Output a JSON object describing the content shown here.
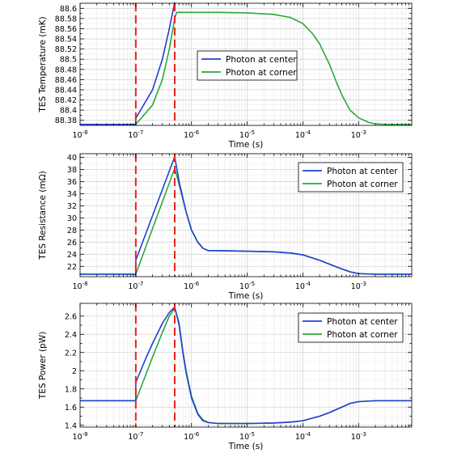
{
  "chart_data": [
    {
      "type": "line",
      "xscale": "log",
      "xlabel": "Time (s)",
      "ylabel": "TES Temperature (mK)",
      "xlim": [
        1e-08,
        0.009
      ],
      "ylim": [
        88.37,
        88.61
      ],
      "x_ticks": [
        1e-08,
        1e-07,
        1e-06,
        1e-05,
        0.0001,
        0.001
      ],
      "x_tick_labels": [
        {
          "base": "10",
          "exp": "-8"
        },
        {
          "base": "10",
          "exp": "-7"
        },
        {
          "base": "10",
          "exp": "-6"
        },
        {
          "base": "10",
          "exp": "-5"
        },
        {
          "base": "10",
          "exp": "-4"
        },
        {
          "base": "10",
          "exp": "-3"
        }
      ],
      "y_ticks": [
        88.38,
        88.4,
        88.42,
        88.44,
        88.46,
        88.48,
        88.5,
        88.52,
        88.54,
        88.56,
        88.58,
        88.6
      ],
      "y_tick_labels": [
        "88.38",
        "88.4",
        "88.42",
        "88.44",
        "88.46",
        "88.48",
        "88.5",
        "88.52",
        "88.54",
        "88.56",
        "88.58",
        "88.6"
      ],
      "grid": true,
      "legend_position": "center-right",
      "markers": [
        1e-07,
        5e-07
      ],
      "marker_color": "#e8221b",
      "series": [
        {
          "name": "Photon at center",
          "color": "#1f3fd6",
          "x": [
            1e-08,
            1e-07,
            1e-07,
            2e-07,
            3e-07,
            4e-07,
            5e-07
          ],
          "y": [
            88.372,
            88.372,
            88.384,
            88.44,
            88.5,
            88.56,
            88.612
          ]
        },
        {
          "name": "Photon at corner",
          "color": "#2aa83a",
          "x": [
            1e-08,
            1e-07,
            1e-07,
            2e-07,
            3e-07,
            4e-07,
            5e-07,
            5.4e-07,
            1e-06,
            3e-06,
            1e-05,
            3e-05,
            6e-05,
            0.0001,
            0.00015,
            0.0002,
            0.0003,
            0.0004,
            0.0005,
            0.0007,
            0.001,
            0.0015,
            0.002,
            0.003,
            0.005,
            0.009
          ],
          "y": [
            88.372,
            88.372,
            88.372,
            88.41,
            88.46,
            88.52,
            88.58,
            88.592,
            88.592,
            88.592,
            88.591,
            88.588,
            88.582,
            88.57,
            88.55,
            88.53,
            88.49,
            88.455,
            88.43,
            88.4,
            88.385,
            88.376,
            88.373,
            88.372,
            88.372,
            88.372
          ]
        }
      ]
    },
    {
      "type": "line",
      "xscale": "log",
      "xlabel": "Time (s)",
      "ylabel": "TES Resistance (mΩ)",
      "xlim": [
        1e-08,
        0.009
      ],
      "ylim": [
        20.3,
        40.6
      ],
      "x_ticks": [
        1e-08,
        1e-07,
        1e-06,
        1e-05,
        0.0001,
        0.001
      ],
      "x_tick_labels": [
        {
          "base": "10",
          "exp": "-8"
        },
        {
          "base": "10",
          "exp": "-7"
        },
        {
          "base": "10",
          "exp": "-6"
        },
        {
          "base": "10",
          "exp": "-5"
        },
        {
          "base": "10",
          "exp": "-4"
        },
        {
          "base": "10",
          "exp": "-3"
        }
      ],
      "y_ticks": [
        22,
        24,
        26,
        28,
        30,
        32,
        34,
        36,
        38,
        40
      ],
      "y_tick_labels": [
        "22",
        "24",
        "26",
        "28",
        "30",
        "32",
        "34",
        "36",
        "38",
        "40"
      ],
      "grid": true,
      "legend_position": "top-right",
      "markers": [
        1e-07,
        5e-07
      ],
      "marker_color": "#e8221b",
      "series": [
        {
          "name": "Photon at center",
          "color": "#1f3fd6",
          "x": [
            1e-08,
            1e-07,
            1e-07,
            5e-07,
            6e-07,
            8e-07,
            1e-06,
            1.3e-06,
            1.6e-06,
            2e-06,
            3e-06,
            1e-05,
            3e-05,
            6e-05,
            0.0001,
            0.0002,
            0.0004,
            0.0007,
            0.001,
            0.002,
            0.009
          ],
          "y": [
            20.7,
            20.7,
            23.0,
            40.1,
            36.0,
            31.0,
            28.0,
            26.0,
            25.0,
            24.6,
            24.6,
            24.5,
            24.4,
            24.2,
            23.9,
            23.0,
            21.9,
            21.1,
            20.8,
            20.7,
            20.7
          ]
        },
        {
          "name": "Photon at corner",
          "color": "#2aa83a",
          "x": [
            1e-08,
            1e-07,
            1e-07,
            5e-07,
            6e-07,
            8e-07,
            1e-06,
            1.3e-06,
            1.6e-06,
            2e-06,
            3e-06,
            1e-05,
            3e-05,
            6e-05,
            0.0001,
            0.0002,
            0.0004,
            0.0007,
            0.001,
            0.002,
            0.009
          ],
          "y": [
            20.7,
            20.7,
            20.7,
            38.2,
            35.5,
            31.0,
            28.0,
            26.0,
            25.0,
            24.6,
            24.6,
            24.5,
            24.4,
            24.2,
            23.9,
            23.0,
            21.9,
            21.1,
            20.8,
            20.7,
            20.7
          ]
        }
      ]
    },
    {
      "type": "line",
      "xscale": "log",
      "xlabel": "Time (s)",
      "ylabel": "TES Power (pW)",
      "xlim": [
        1e-08,
        0.009
      ],
      "ylim": [
        1.38,
        2.74
      ],
      "x_ticks": [
        1e-08,
        1e-07,
        1e-06,
        1e-05,
        0.0001,
        0.001
      ],
      "x_tick_labels": [
        {
          "base": "10",
          "exp": "-8"
        },
        {
          "base": "10",
          "exp": "-7"
        },
        {
          "base": "10",
          "exp": "-6"
        },
        {
          "base": "10",
          "exp": "-5"
        },
        {
          "base": "10",
          "exp": "-4"
        },
        {
          "base": "10",
          "exp": "-3"
        }
      ],
      "y_ticks": [
        1.4,
        1.6,
        1.8,
        2,
        2.2,
        2.4,
        2.6
      ],
      "y_tick_labels": [
        "1.4",
        "1.6",
        "1.8",
        "2",
        "2.2",
        "2.4",
        "2.6"
      ],
      "grid": true,
      "legend_position": "top-right",
      "markers": [
        1e-07,
        5e-07
      ],
      "marker_color": "#e8221b",
      "series": [
        {
          "name": "Photon at center",
          "color": "#1f3fd6",
          "x": [
            1e-08,
            1e-07,
            1e-07,
            1.5e-07,
            2e-07,
            3e-07,
            4e-07,
            5e-07,
            6e-07,
            7e-07,
            8e-07,
            1e-06,
            1.3e-06,
            1.6e-06,
            2e-06,
            3e-06,
            5e-06,
            1e-05,
            3e-05,
            6e-05,
            0.0001,
            0.0002,
            0.0003,
            0.0005,
            0.0007,
            0.001,
            0.002,
            0.009
          ],
          "y": [
            1.67,
            1.67,
            1.87,
            2.13,
            2.3,
            2.52,
            2.64,
            2.7,
            2.5,
            2.2,
            1.98,
            1.7,
            1.52,
            1.45,
            1.43,
            1.42,
            1.42,
            1.42,
            1.425,
            1.435,
            1.45,
            1.5,
            1.54,
            1.6,
            1.64,
            1.66,
            1.67,
            1.67
          ]
        },
        {
          "name": "Photon at corner",
          "color": "#2aa83a",
          "x": [
            1e-08,
            1e-07,
            1e-07,
            1.5e-07,
            2e-07,
            3e-07,
            4e-07,
            5e-07,
            6e-07,
            7e-07,
            8e-07,
            1e-06,
            1.3e-06,
            1.6e-06,
            2e-06,
            3e-06,
            5e-06,
            1e-05,
            3e-05,
            6e-05,
            0.0001,
            0.0002,
            0.0003,
            0.0005,
            0.0007,
            0.001,
            0.002,
            0.009
          ],
          "y": [
            1.67,
            1.67,
            1.67,
            1.95,
            2.15,
            2.42,
            2.6,
            2.69,
            2.52,
            2.22,
            2.0,
            1.72,
            1.53,
            1.46,
            1.43,
            1.42,
            1.42,
            1.42,
            1.425,
            1.435,
            1.45,
            1.5,
            1.54,
            1.6,
            1.64,
            1.66,
            1.67,
            1.67
          ]
        }
      ]
    }
  ]
}
